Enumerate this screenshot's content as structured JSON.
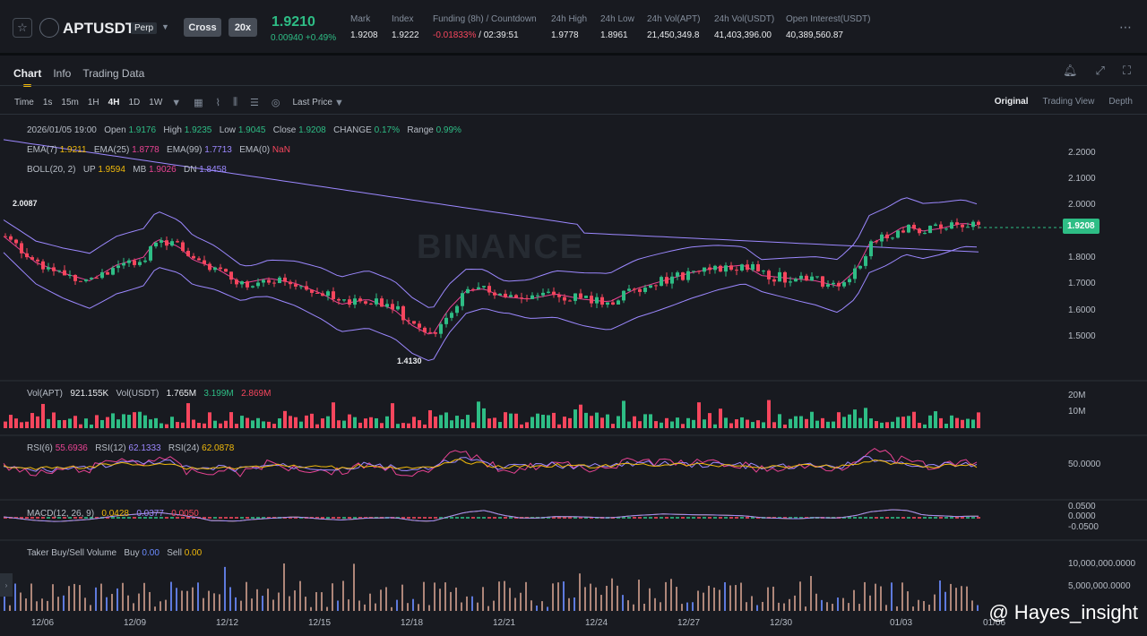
{
  "header": {
    "symbol": "APUSDT",
    "symbol_full": "APTUSDT",
    "type_badge": "Perp",
    "margin_mode": "Cross",
    "leverage": "20x",
    "last_price": "1.9210",
    "change": "0.00940 +0.49%",
    "stats": [
      {
        "label": "Mark",
        "value": "1.9208"
      },
      {
        "label": "Index",
        "value": "1.9222"
      },
      {
        "label": "Funding (8h) / Countdown",
        "value_neg": "-0.01833%",
        "value": " / 02:39:51"
      },
      {
        "label": "24h High",
        "value": "1.9778"
      },
      {
        "label": "24h Low",
        "value": "1.8961"
      },
      {
        "label": "24h Vol(APT)",
        "value": "21,450,349.8"
      },
      {
        "label": "24h Vol(USDT)",
        "value": "41,403,396.00"
      },
      {
        "label": "Open Interest(USDT)",
        "value": "40,389,560.87"
      }
    ]
  },
  "tabs": [
    "Chart",
    "Info",
    "Trading Data"
  ],
  "toolbar": {
    "intervals": [
      "Time",
      "1s",
      "15m",
      "1H",
      "4H",
      "1D",
      "1W"
    ],
    "active_interval": "4H",
    "price_type": "Last Price"
  },
  "view_tabs": [
    "Original",
    "Trading View",
    "Depth"
  ],
  "ohlc": {
    "date": "2026/01/05 19:00",
    "open_label": "Open",
    "open": "1.9176",
    "high_label": "High",
    "high": "1.9235",
    "low_label": "Low",
    "low": "1.9045",
    "close_label": "Close",
    "close": "1.9208",
    "change_label": "CHANGE",
    "change": "0.17%",
    "range_label": "Range",
    "range": "0.99%"
  },
  "ema": {
    "e7_label": "EMA(7)",
    "e7": "1.9211",
    "e25_label": "EMA(25)",
    "e25": "1.8778",
    "e99_label": "EMA(99)",
    "e99": "1.7713",
    "e0_label": "EMA(0)",
    "e0": "NaN"
  },
  "boll": {
    "label": "BOLL(20, 2)",
    "up_label": "UP",
    "up": "1.9594",
    "mb_label": "MB",
    "mb": "1.9026",
    "dn_label": "DN",
    "dn": "1.8458"
  },
  "price_axis": [
    "2.2000",
    "2.1000",
    "2.0000",
    "1.8000",
    "1.7000",
    "1.6000",
    "1.5000"
  ],
  "current_price_tag": "1.9208",
  "high_marker": "2.0087",
  "low_marker": "1.4130",
  "watermark": "BINANCE",
  "volume": {
    "label": "Vol(APT)",
    "apt": "921.155K",
    "usdt_label": "Vol(USDT)",
    "usdt": "1.765M",
    "ma1": "3.199M",
    "ma2": "2.869M",
    "axis": [
      "20M",
      "10M"
    ]
  },
  "rsi": {
    "r6_label": "RSI(6)",
    "r6": "55.6936",
    "r12_label": "RSI(12)",
    "r12": "62.1333",
    "r24_label": "RSI(24)",
    "r24": "62.0878",
    "axis": [
      "50.0000"
    ]
  },
  "macd": {
    "label": "MACD(12, 26, 9)",
    "v1": "0.0428",
    "v2": "0.0377",
    "v3": "0.0050",
    "axis": [
      "0.0500",
      "0.0000",
      "-0.0500"
    ]
  },
  "taker": {
    "label": "Taker Buy/Sell Volume",
    "buy_label": "Buy",
    "buy": "0.00",
    "sell_label": "Sell",
    "sell": "0.00",
    "axis": [
      "10,000,000.0000",
      "5,000,000.0000"
    ]
  },
  "date_axis": [
    "12/06",
    "12/09",
    "12/12",
    "12/15",
    "12/18",
    "12/21",
    "12/24",
    "12/27",
    "12/30",
    "01/03",
    "01/06"
  ],
  "brand": "@ Hayes_insight",
  "colors": {
    "up": "#2ebd85",
    "down": "#f6465d",
    "ema7": "#f0b90b",
    "ema25": "#e84393",
    "ema99": "#9c88ff"
  }
}
